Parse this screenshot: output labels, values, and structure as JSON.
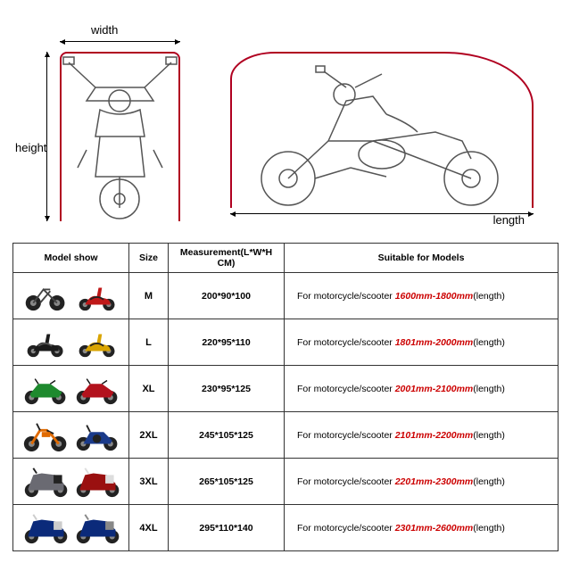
{
  "diagram": {
    "width_label": "width",
    "height_label": "height",
    "length_label": "length",
    "outline_color": "#b00020",
    "line_color": "#555555"
  },
  "table": {
    "headers": {
      "model": "Model show",
      "size": "Size",
      "measurement": "Measurement(L*W*H CM)",
      "suitable": "Suitable for Models"
    },
    "suitable_prefix": "For motorcycle/scooter ",
    "suitable_suffix": "(length)",
    "rows": [
      {
        "size": "M",
        "measurement": "200*90*100",
        "range": "1600mm-1800mm",
        "thumbs": [
          "bicycle",
          "scooter-red"
        ]
      },
      {
        "size": "L",
        "measurement": "220*95*110",
        "range": "1801mm-2000mm",
        "thumbs": [
          "scooter-black",
          "scooter-yellow"
        ]
      },
      {
        "size": "XL",
        "measurement": "230*95*125",
        "range": "2001mm-2100mm",
        "thumbs": [
          "sport-green",
          "sport-red"
        ]
      },
      {
        "size": "2XL",
        "measurement": "245*105*125",
        "range": "2101mm-2200mm",
        "thumbs": [
          "dirt-orange",
          "standard-blue"
        ]
      },
      {
        "size": "3XL",
        "measurement": "265*105*125",
        "range": "2201mm-2300mm",
        "thumbs": [
          "tourer-grey",
          "tourer-red"
        ]
      },
      {
        "size": "4XL",
        "measurement": "295*110*140",
        "range": "2301mm-2600mm",
        "thumbs": [
          "tourer-blue",
          "tourer-blue2"
        ]
      }
    ]
  },
  "thumb_styles": {
    "bicycle": {
      "body": "#444444",
      "accent": "#888888",
      "kind": "bicycle"
    },
    "scooter-red": {
      "body": "#c01818",
      "accent": "#222222",
      "kind": "scooter"
    },
    "scooter-black": {
      "body": "#1a1a1a",
      "accent": "#555555",
      "kind": "scooter"
    },
    "scooter-yellow": {
      "body": "#d9a400",
      "accent": "#222222",
      "kind": "scooter"
    },
    "sport-green": {
      "body": "#1e8a2e",
      "accent": "#111111",
      "kind": "sport"
    },
    "sport-red": {
      "body": "#b3121d",
      "accent": "#111111",
      "kind": "sport"
    },
    "dirt-orange": {
      "body": "#e06a00",
      "accent": "#222222",
      "kind": "dirt"
    },
    "standard-blue": {
      "body": "#1a3a8a",
      "accent": "#222222",
      "kind": "standard"
    },
    "tourer-grey": {
      "body": "#6a6a72",
      "accent": "#222222",
      "kind": "tourer"
    },
    "tourer-red": {
      "body": "#9a1010",
      "accent": "#dddddd",
      "kind": "tourer"
    },
    "tourer-blue": {
      "body": "#0b2a7a",
      "accent": "#cccccc",
      "kind": "tourer"
    },
    "tourer-blue2": {
      "body": "#0b2a7a",
      "accent": "#888888",
      "kind": "tourer"
    }
  }
}
